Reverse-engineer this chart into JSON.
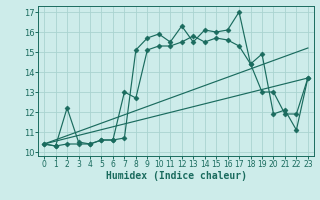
{
  "xlabel": "Humidex (Indice chaleur)",
  "xlim": [
    -0.5,
    23.5
  ],
  "ylim": [
    9.8,
    17.3
  ],
  "yticks": [
    10,
    11,
    12,
    13,
    14,
    15,
    16,
    17
  ],
  "xticks": [
    0,
    1,
    2,
    3,
    4,
    5,
    6,
    7,
    8,
    9,
    10,
    11,
    12,
    13,
    14,
    15,
    16,
    17,
    18,
    19,
    20,
    21,
    22,
    23
  ],
  "bg_color": "#cdecea",
  "grid_color": "#aad4d0",
  "line_color": "#1a6b5e",
  "line1": [
    10.4,
    10.3,
    12.2,
    10.5,
    10.4,
    10.6,
    10.6,
    10.7,
    15.1,
    15.7,
    15.9,
    15.5,
    16.3,
    15.5,
    16.1,
    16.0,
    16.1,
    17.0,
    14.4,
    14.9,
    11.9,
    12.1,
    11.1,
    13.7
  ],
  "line2": [
    10.4,
    10.3,
    10.4,
    10.4,
    10.4,
    10.6,
    10.6,
    13.0,
    12.7,
    15.1,
    15.3,
    15.3,
    15.5,
    15.8,
    15.5,
    15.7,
    15.6,
    15.3,
    14.4,
    13.0,
    13.0,
    11.9,
    11.9,
    13.7
  ],
  "line3": [
    [
      0,
      10.4
    ],
    [
      23,
      15.2
    ]
  ],
  "line4": [
    [
      0,
      10.4
    ],
    [
      23,
      13.7
    ]
  ],
  "marker": "D",
  "markersize": 2.5,
  "lw": 0.85
}
